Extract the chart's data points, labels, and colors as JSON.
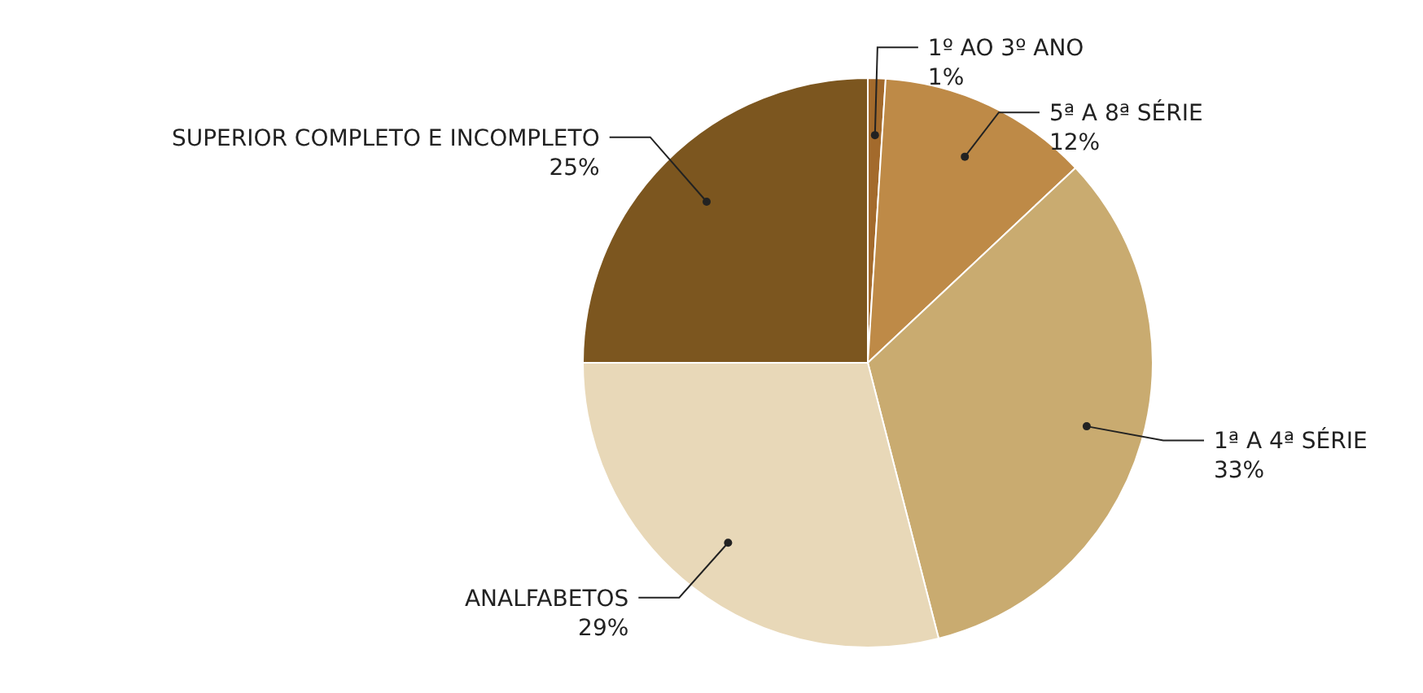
{
  "chart_data": {
    "type": "pie",
    "categories": [
      "1º AO 3º ANO",
      "5ª A 8ª SÉRIE",
      "1ª A 4ª SÉRIE",
      "ANALFABETOS",
      "SUPERIOR COMPLETO E INCOMPLETO"
    ],
    "values": [
      1,
      12,
      33,
      29,
      25
    ],
    "value_labels": [
      "1%",
      "12%",
      "33%",
      "29%",
      "25%"
    ],
    "colors": [
      "#a36a2c",
      "#be8a47",
      "#c9ab70",
      "#e8d8b8",
      "#7c561f"
    ]
  }
}
